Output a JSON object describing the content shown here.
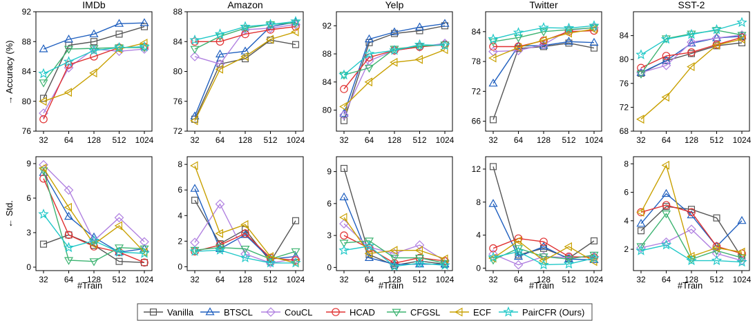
{
  "chart_data": {
    "type": "line",
    "categories": [
      "32",
      "64",
      "128",
      "512",
      "1024"
    ],
    "row_labels": {
      "top": "→ Accuracy (%)",
      "bottom": "← Std."
    },
    "xlabel": "#Train",
    "legend": {
      "placement": "bottom-center",
      "entries": [
        {
          "name": "Vanilla",
          "color": "#555555",
          "marker": "square"
        },
        {
          "name": "BTSCL",
          "color": "#1f5fbf",
          "marker": "triangle-up"
        },
        {
          "name": "CouCL",
          "color": "#b080e0",
          "marker": "diamond"
        },
        {
          "name": "HCAD",
          "color": "#e03030",
          "marker": "circle"
        },
        {
          "name": "CFGSL",
          "color": "#3cb371",
          "marker": "triangle-down"
        },
        {
          "name": "ECF",
          "color": "#c8a000",
          "marker": "triangle-left"
        },
        {
          "name": "PairCFR (Ours)",
          "color": "#20c8c8",
          "marker": "star"
        }
      ]
    },
    "panels": [
      {
        "title": "IMDb",
        "row": "top",
        "ylim": [
          76,
          92
        ],
        "yticks": [
          76,
          80,
          84,
          88,
          92
        ],
        "series": [
          [
            80.4,
            87.5,
            88.0,
            89.0,
            90.0
          ],
          [
            87.0,
            88.3,
            89.0,
            90.4,
            90.5
          ],
          [
            78.4,
            84.5,
            87.0,
            86.7,
            87.0
          ],
          [
            77.6,
            84.9,
            86.0,
            87.2,
            87.3
          ],
          [
            82.5,
            87.0,
            87.1,
            87.2,
            87.2
          ],
          [
            80.0,
            81.2,
            83.8,
            87.0,
            87.8
          ],
          [
            83.7,
            85.3,
            86.8,
            87.2,
            87.3
          ]
        ]
      },
      {
        "title": "Amazon",
        "row": "top",
        "ylim": [
          72,
          88
        ],
        "yticks": [
          72,
          76,
          80,
          84,
          88
        ],
        "series": [
          [
            73.6,
            81.0,
            81.7,
            84.2,
            83.6
          ],
          [
            74.0,
            82.3,
            82.7,
            86.0,
            86.6
          ],
          [
            82.0,
            81.0,
            85.6,
            85.8,
            86.3
          ],
          [
            84.0,
            84.0,
            85.0,
            85.6,
            86.0
          ],
          [
            83.0,
            84.7,
            85.8,
            86.3,
            86.5
          ],
          [
            73.4,
            80.3,
            82.0,
            84.3,
            85.3
          ],
          [
            84.2,
            85.0,
            86.0,
            86.3,
            86.7
          ]
        ]
      },
      {
        "title": "Yelp",
        "row": "top",
        "ylim": [
          77,
          94
        ],
        "yticks": [
          80,
          84,
          88,
          92
        ],
        "series": [
          [
            78.5,
            89.6,
            90.9,
            91.3,
            92.0
          ],
          [
            79.5,
            90.1,
            91.1,
            91.8,
            92.3
          ],
          [
            79.3,
            87.0,
            88.5,
            89.0,
            89.5
          ],
          [
            83.0,
            87.5,
            88.5,
            89.0,
            89.3
          ],
          [
            85.0,
            86.0,
            88.7,
            89.1,
            89.3
          ],
          [
            80.5,
            84.0,
            86.8,
            87.2,
            88.6
          ],
          [
            85.0,
            88.0,
            88.5,
            89.3,
            89.2
          ]
        ]
      },
      {
        "title": "Twitter",
        "row": "top",
        "ylim": [
          64,
          88
        ],
        "yticks": [
          66,
          72,
          78,
          84
        ],
        "series": [
          [
            66.3,
            80.6,
            81.0,
            81.7,
            80.7
          ],
          [
            73.6,
            81.1,
            81.2,
            82.0,
            81.8
          ],
          [
            80.0,
            80.2,
            81.4,
            84.3,
            84.8
          ],
          [
            81.0,
            81.0,
            82.2,
            84.0,
            84.2
          ],
          [
            82.0,
            82.8,
            84.0,
            84.4,
            84.8
          ],
          [
            78.7,
            80.8,
            82.3,
            83.7,
            84.5
          ],
          [
            82.5,
            83.8,
            84.8,
            84.7,
            85.2
          ]
        ]
      },
      {
        "title": "SST-2",
        "row": "top",
        "ylim": [
          68,
          88
        ],
        "yticks": [
          68,
          72,
          76,
          80,
          84
        ],
        "series": [
          [
            77.7,
            79.8,
            81.0,
            82.3,
            82.8
          ],
          [
            77.8,
            79.8,
            82.7,
            83.6,
            83.9
          ],
          [
            77.8,
            79.0,
            82.9,
            83.6,
            84.1
          ],
          [
            78.6,
            80.6,
            81.2,
            82.5,
            83.7
          ],
          [
            77.6,
            83.5,
            84.3,
            84.9,
            84.1
          ],
          [
            70.0,
            73.7,
            78.8,
            82.4,
            83.4
          ],
          [
            80.8,
            83.4,
            84.2,
            85.0,
            86.2
          ]
        ]
      },
      {
        "title": "",
        "row": "bottom",
        "ylim": [
          -0.3,
          9.6
        ],
        "yticks": [
          0,
          3,
          6,
          9
        ],
        "series": [
          [
            2.0,
            2.8,
            1.9,
            0.5,
            0.4
          ],
          [
            8.2,
            4.4,
            2.6,
            1.3,
            1.6
          ],
          [
            8.9,
            6.7,
            2.3,
            4.3,
            2.2
          ],
          [
            7.7,
            2.8,
            1.8,
            1.3,
            0.4
          ],
          [
            8.4,
            0.6,
            0.5,
            1.7,
            1.6
          ],
          [
            8.6,
            5.2,
            2.0,
            3.6,
            1.3
          ],
          [
            4.6,
            1.7,
            2.3,
            1.3,
            1.2
          ]
        ]
      },
      {
        "title": "",
        "row": "bottom",
        "ylim": [
          -0.3,
          8.6
        ],
        "yticks": [
          0,
          2,
          4,
          6,
          8
        ],
        "series": [
          [
            5.2,
            1.8,
            2.9,
            0.4,
            3.6
          ],
          [
            6.1,
            1.4,
            2.5,
            0.6,
            0.8
          ],
          [
            1.9,
            4.9,
            1.0,
            0.3,
            0.6
          ],
          [
            1.2,
            1.7,
            2.6,
            0.7,
            0.5
          ],
          [
            1.3,
            1.5,
            1.4,
            0.6,
            1.2
          ],
          [
            7.9,
            2.6,
            3.3,
            0.8,
            0.3
          ],
          [
            1.2,
            1.3,
            0.7,
            0.3,
            0.3
          ]
        ]
      },
      {
        "title": "",
        "row": "bottom",
        "ylim": [
          -0.3,
          10.4
        ],
        "yticks": [
          0,
          3,
          6,
          9
        ],
        "series": [
          [
            9.3,
            1.2,
            0.2,
            0.6,
            0.3
          ],
          [
            6.6,
            0.9,
            0.3,
            0.3,
            0.3
          ],
          [
            4.1,
            1.9,
            1.3,
            2.1,
            0.6
          ],
          [
            3.0,
            1.8,
            0.4,
            0.9,
            0.6
          ],
          [
            2.3,
            2.5,
            0.9,
            0.9,
            0.4
          ],
          [
            4.7,
            1.3,
            1.6,
            1.6,
            0.8
          ],
          [
            1.6,
            2.0,
            0.1,
            0.4,
            0.2
          ]
        ]
      },
      {
        "title": "",
        "row": "bottom",
        "ylim": [
          -0.3,
          13.5
        ],
        "yticks": [
          0,
          4,
          8,
          12
        ],
        "series": [
          [
            12.3,
            1.6,
            2.4,
            1.2,
            3.3
          ],
          [
            7.8,
            1.4,
            2.6,
            1.1,
            1.0
          ],
          [
            1.7,
            0.4,
            1.4,
            1.3,
            1.4
          ],
          [
            2.4,
            3.6,
            3.2,
            1.4,
            1.3
          ],
          [
            1.0,
            2.4,
            1.4,
            1.1,
            1.6
          ],
          [
            1.2,
            3.3,
            0.9,
            2.6,
            0.8
          ],
          [
            1.3,
            2.0,
            0.4,
            0.5,
            1.2
          ]
        ]
      },
      {
        "title": "",
        "row": "bottom",
        "ylim": [
          0.5,
          8.5
        ],
        "yticks": [
          2,
          4,
          6,
          8
        ],
        "series": [
          [
            3.3,
            5.0,
            4.8,
            4.2,
            1.4
          ],
          [
            3.8,
            5.9,
            4.4,
            2.2,
            4.0
          ],
          [
            2.1,
            2.5,
            3.4,
            1.7,
            1.2
          ],
          [
            4.6,
            5.1,
            4.6,
            2.2,
            1.7
          ],
          [
            2.2,
            4.5,
            1.3,
            1.9,
            1.4
          ],
          [
            4.6,
            7.9,
            1.5,
            2.1,
            1.8
          ],
          [
            1.9,
            2.3,
            1.2,
            1.2,
            1.1
          ]
        ]
      }
    ]
  }
}
